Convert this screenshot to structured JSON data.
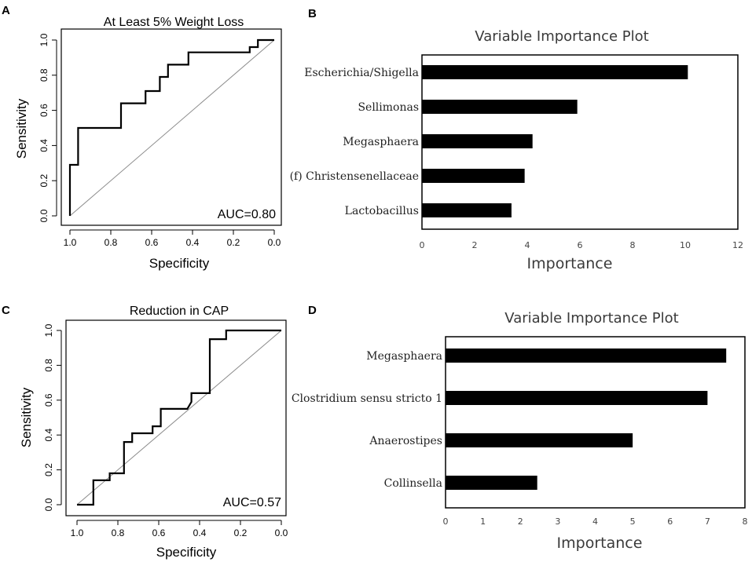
{
  "panels": {
    "A": "A",
    "B": "B",
    "C": "C",
    "D": "D"
  },
  "chart_data": [
    {
      "type": "line",
      "panel": "A",
      "title": "At Least 5% Weight Loss",
      "xlabel": "Specificity",
      "ylabel": "Sensitivity",
      "xlim": [
        1.0,
        0.0
      ],
      "ylim": [
        0.0,
        1.0
      ],
      "x_reversed": true,
      "xticks": [
        1.0,
        0.8,
        0.6,
        0.4,
        0.2,
        0.0
      ],
      "xtick_labels": [
        "1.0",
        "0.8",
        "0.6",
        "0.4",
        "0.2",
        "0.0"
      ],
      "yticks": [
        0.0,
        0.2,
        0.4,
        0.6,
        0.8,
        1.0
      ],
      "ytick_labels": [
        "0.0",
        "0.2",
        "0.4",
        "0.6",
        "0.8",
        "1.0"
      ],
      "annotation": "AUC=0.80",
      "diagonal": true,
      "series": [
        {
          "name": "ROC",
          "specificity": [
            1.0,
            1.0,
            0.96,
            0.96,
            0.75,
            0.75,
            0.63,
            0.63,
            0.56,
            0.56,
            0.52,
            0.52,
            0.42,
            0.42,
            0.12,
            0.12,
            0.08,
            0.08,
            0.0
          ],
          "sensitivity": [
            0.0,
            0.29,
            0.29,
            0.5,
            0.5,
            0.64,
            0.64,
            0.71,
            0.71,
            0.79,
            0.79,
            0.86,
            0.86,
            0.93,
            0.93,
            0.96,
            0.96,
            1.0,
            1.0
          ]
        }
      ]
    },
    {
      "type": "bar",
      "orientation": "horizontal",
      "panel": "B",
      "title": "Variable Importance Plot",
      "xlabel": "Importance",
      "xlim": [
        0,
        12
      ],
      "xticks": [
        0,
        2,
        4,
        6,
        8,
        10,
        12
      ],
      "xtick_labels": [
        "0",
        "2",
        "4",
        "6",
        "8",
        "10",
        "12"
      ],
      "categories": [
        "Escherichia/Shigella",
        "Sellimonas",
        "Megasphaera",
        "(f) Christensenellaceae",
        "Lactobacillus"
      ],
      "values": [
        10.1,
        5.9,
        4.2,
        3.9,
        3.4
      ]
    },
    {
      "type": "line",
      "panel": "C",
      "title": "Reduction in CAP",
      "xlabel": "Specificity",
      "ylabel": "Sensitivity",
      "xlim": [
        1.0,
        0.0
      ],
      "ylim": [
        0.0,
        1.0
      ],
      "x_reversed": true,
      "xticks": [
        1.0,
        0.8,
        0.6,
        0.4,
        0.2,
        0.0
      ],
      "xtick_labels": [
        "1.0",
        "0.8",
        "0.6",
        "0.4",
        "0.2",
        "0.0"
      ],
      "yticks": [
        0.0,
        0.2,
        0.4,
        0.6,
        0.8,
        1.0
      ],
      "ytick_labels": [
        "0.0",
        "0.2",
        "0.4",
        "0.6",
        "0.8",
        "1.0"
      ],
      "annotation": "AUC=0.57",
      "diagonal": true,
      "series": [
        {
          "name": "ROC",
          "specificity": [
            1.0,
            0.92,
            0.92,
            0.84,
            0.84,
            0.77,
            0.77,
            0.73,
            0.73,
            0.69,
            0.69,
            0.63,
            0.63,
            0.59,
            0.59,
            0.46,
            0.44,
            0.44,
            0.35,
            0.35,
            0.27,
            0.27,
            0.0
          ],
          "sensitivity": [
            0.0,
            0.0,
            0.14,
            0.14,
            0.18,
            0.18,
            0.36,
            0.36,
            0.41,
            0.41,
            0.41,
            0.41,
            0.45,
            0.45,
            0.55,
            0.55,
            0.59,
            0.64,
            0.64,
            0.95,
            0.95,
            1.0,
            1.0
          ]
        }
      ]
    },
    {
      "type": "bar",
      "orientation": "horizontal",
      "panel": "D",
      "title": "Variable Importance Plot",
      "xlabel": "Importance",
      "xlim": [
        0,
        8
      ],
      "xticks": [
        0,
        1,
        2,
        3,
        4,
        5,
        6,
        7,
        8
      ],
      "xtick_labels": [
        "0",
        "1",
        "2",
        "3",
        "4",
        "5",
        "6",
        "7",
        "8"
      ],
      "categories": [
        "Megasphaera",
        "Clostridium sensu stricto 1",
        "Anaerostipes",
        "Collinsella"
      ],
      "values": [
        7.5,
        7.0,
        5.0,
        2.45
      ]
    }
  ]
}
